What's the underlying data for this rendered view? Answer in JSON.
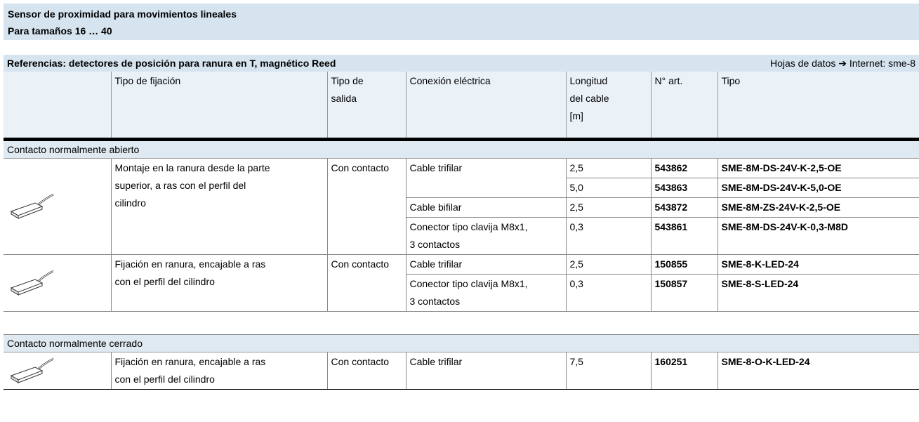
{
  "header": {
    "title": "Sensor de proximidad para movimientos lineales",
    "subtitle": "Para tamaños 16 … 40"
  },
  "table": {
    "caption": "Referencias: detectores de posición para ranura en T, magnético Reed",
    "caption_note": "Hojas de datos ➔ Internet: sme-8",
    "columns": [
      "Tipo de fijación",
      "Tipo de\nsalida",
      "Conexión eléctrica",
      "Longitud\ndel cable\n[m]",
      "N° art.",
      "Tipo"
    ],
    "sections": [
      {
        "label": "Contacto normalmente abierto",
        "groups": [
          {
            "fixing": "Montaje en la ranura desde la parte\nsuperior, a ras con el perfil del\ncilindro",
            "output": "Con contacto",
            "connections": [
              {
                "name": "Cable trifilar",
                "variants": [
                  {
                    "length": "2,5",
                    "part": "543862",
                    "type": "SME-8M-DS-24V-K-2,5-OE"
                  },
                  {
                    "length": "5,0",
                    "part": "543863",
                    "type": "SME-8M-DS-24V-K-5,0-OE"
                  }
                ]
              },
              {
                "name": "Cable bifilar",
                "variants": [
                  {
                    "length": "2,5",
                    "part": "543872",
                    "type": "SME-8M-ZS-24V-K-2,5-OE"
                  }
                ]
              },
              {
                "name": "Conector tipo clavija M8x1,\n3 contactos",
                "variants": [
                  {
                    "length": "0,3",
                    "part": "543861",
                    "type": "SME-8M-DS-24V-K-0,3-M8D"
                  }
                ]
              }
            ]
          },
          {
            "fixing": "Fijación en ranura, encajable a ras\ncon el perfil del cilindro",
            "output": "Con contacto",
            "connections": [
              {
                "name": "Cable trifilar",
                "variants": [
                  {
                    "length": "2,5",
                    "part": "150855",
                    "type": "SME-8-K-LED-24"
                  }
                ]
              },
              {
                "name": "Conector tipo clavija M8x1,\n3 contactos",
                "variants": [
                  {
                    "length": "0,3",
                    "part": "150857",
                    "type": "SME-8-S-LED-24"
                  }
                ]
              }
            ]
          }
        ]
      },
      {
        "label": "Contacto normalmente cerrado",
        "groups": [
          {
            "fixing": "Fijación en ranura, encajable a ras\ncon el perfil del cilindro",
            "output": "Con contacto",
            "connections": [
              {
                "name": "Cable trifilar",
                "variants": [
                  {
                    "length": "7,5",
                    "part": "160251",
                    "type": "SME-8-O-K-LED-24"
                  }
                ]
              }
            ]
          }
        ]
      }
    ]
  }
}
